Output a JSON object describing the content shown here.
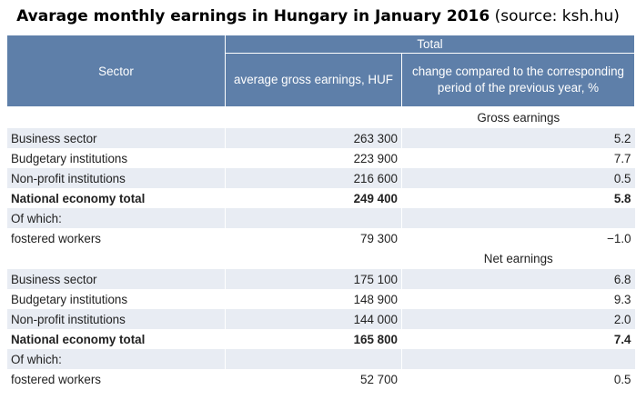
{
  "title": {
    "bold": "Avarage monthly earnings in Hungary in January 2016",
    "rest": " (source: ksh.hu)"
  },
  "header": {
    "sector": "Sector",
    "total": "Total",
    "col_earnings": "average gross earnings, HUF",
    "col_change": "change compared to the corresponding period of the previous year, %"
  },
  "sections": [
    {
      "label": "Gross earnings",
      "rows": [
        {
          "sector": "Business sector",
          "earnings": "263 300",
          "change": "5.2"
        },
        {
          "sector": "Budgetary institutions",
          "earnings": "223 900",
          "change": "7.7"
        },
        {
          "sector": "Non-profit institutions",
          "earnings": "216 600",
          "change": "0.5"
        },
        {
          "sector": "National economy total",
          "earnings": "249 400",
          "change": "5.8"
        },
        {
          "sector": "Of which:",
          "earnings": "",
          "change": ""
        },
        {
          "sector": "fostered workers",
          "earnings": "79 300",
          "change": "−1.0"
        }
      ]
    },
    {
      "label": "Net earnings",
      "rows": [
        {
          "sector": "Business sector",
          "earnings": "175 100",
          "change": "6.8"
        },
        {
          "sector": "Budgetary institutions",
          "earnings": "148 900",
          "change": "9.3"
        },
        {
          "sector": "Non-profit institutions",
          "earnings": "144 000",
          "change": "2.0"
        },
        {
          "sector": "National economy total",
          "earnings": "165 800",
          "change": "7.4"
        },
        {
          "sector": "Of which:",
          "earnings": "",
          "change": ""
        },
        {
          "sector": "fostered workers",
          "earnings": "52 700",
          "change": "0.5"
        }
      ]
    }
  ],
  "colors": {
    "header_bg": "#5e7fa9",
    "row_shade": "#e8ecf3"
  }
}
